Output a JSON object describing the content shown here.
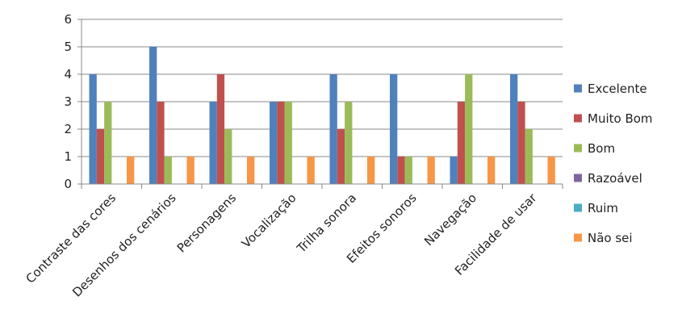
{
  "chart_data": {
    "type": "bar",
    "title": "",
    "xlabel": "",
    "ylabel": "",
    "ylim": [
      0,
      6
    ],
    "yticks": [
      0,
      1,
      2,
      3,
      4,
      5,
      6
    ],
    "grid": true,
    "legend_position": "right",
    "categories": [
      "Contraste das cores",
      "Desenhos dos cenários",
      "Personagens",
      "Vocalização",
      "Trilha sonora",
      "Efeitos sonoros",
      "Navegação",
      "Facilidade de usar"
    ],
    "series": [
      {
        "name": "Excelente",
        "color": "#4F81BD",
        "values": [
          4,
          5,
          3,
          3,
          4,
          4,
          1,
          4
        ]
      },
      {
        "name": "Muito Bom",
        "color": "#C0504D",
        "values": [
          2,
          3,
          4,
          3,
          2,
          1,
          3,
          3
        ]
      },
      {
        "name": "Bom",
        "color": "#9BBB59",
        "values": [
          3,
          1,
          2,
          3,
          3,
          1,
          4,
          2
        ]
      },
      {
        "name": "Razoável",
        "color": "#8064A2",
        "values": [
          0,
          0,
          0,
          0,
          0,
          0,
          0,
          0
        ]
      },
      {
        "name": "Ruim",
        "color": "#4BACC6",
        "values": [
          0,
          0,
          0,
          0,
          0,
          0,
          0,
          0
        ]
      },
      {
        "name": "Não sei",
        "color": "#F79646",
        "values": [
          1,
          1,
          1,
          1,
          1,
          1,
          1,
          1
        ]
      }
    ]
  }
}
